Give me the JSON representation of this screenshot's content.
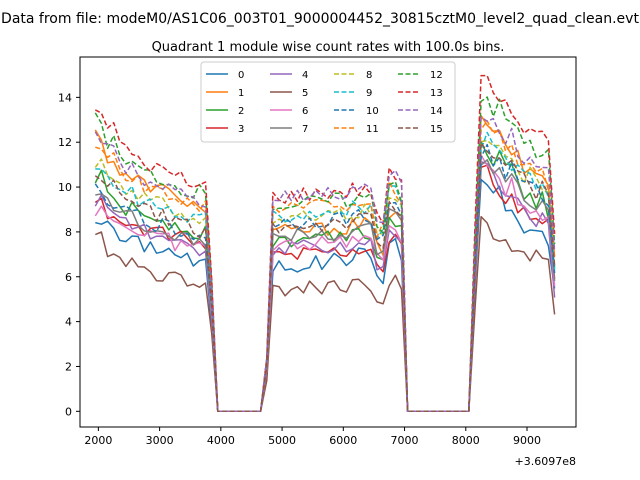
{
  "suptitle": "Data from file: modeM0/AS1C06_003T01_9000004452_30815cztM0_level2_quad_clean.evt",
  "chart_data": {
    "type": "line",
    "title": "Quadrant 1 module wise count rates with 100.0s bins.",
    "xlabel": "",
    "ylabel": "",
    "x_offset_label": "+3.6097e8",
    "xlim": [
      1700,
      9800
    ],
    "ylim": [
      -0.7,
      15.8
    ],
    "xticks": [
      2000,
      3000,
      4000,
      5000,
      6000,
      7000,
      8000,
      9000
    ],
    "yticks": [
      0,
      2,
      4,
      6,
      8,
      10,
      12,
      14
    ],
    "grid": false,
    "legend_position": "upper-center",
    "x": [
      1950,
      2050,
      2150,
      2250,
      2350,
      2450,
      2550,
      2650,
      2750,
      2850,
      2950,
      3050,
      3150,
      3250,
      3350,
      3450,
      3550,
      3650,
      3750,
      3850,
      3950,
      4050,
      4150,
      4250,
      4350,
      4450,
      4550,
      4650,
      4750,
      4850,
      4950,
      5050,
      5150,
      5250,
      5350,
      5450,
      5550,
      5650,
      5750,
      5850,
      5950,
      6050,
      6150,
      6250,
      6350,
      6450,
      6550,
      6650,
      6750,
      6850,
      6950,
      7050,
      7150,
      7250,
      7350,
      7450,
      7550,
      7650,
      7750,
      7850,
      7950,
      8050,
      8150,
      8250,
      8350,
      8450,
      8550,
      8650,
      8750,
      8850,
      8950,
      9050,
      9150,
      9250,
      9350,
      9450
    ],
    "segments": [
      {
        "start": 1950,
        "end": 3780,
        "level": 1.0,
        "settle": 0.02
      },
      {
        "start": 4740,
        "end": 6900,
        "level": 1.0,
        "settle": 0.0
      },
      {
        "start": 8120,
        "end": 9450,
        "level": 1.0,
        "settle": 0.03
      }
    ],
    "series": [
      {
        "name": "0",
        "color": "#1f77b4",
        "dash": "solid",
        "base": [
          8.6,
          8.2,
          7.7,
          7.6,
          7.5,
          7.4,
          7.3,
          7.2,
          7.0,
          6.8,
          6.6,
          6.3
        ],
        "seg2": [
          6.5,
          6.6,
          6.8,
          7.0,
          7.0
        ],
        "seg3": [
          10.2,
          9.8,
          9.0,
          8.6,
          8.0,
          7.7,
          7.6,
          5.3
        ]
      },
      {
        "name": "1",
        "color": "#ff7f0e",
        "dash": "solid",
        "base": [
          12.4,
          11.2,
          10.6,
          10.4,
          10.3,
          10.1,
          9.9,
          9.7,
          9.6,
          9.4,
          9.2,
          8.7
        ],
        "seg2": [
          8.0,
          8.1,
          8.2,
          8.3,
          8.4
        ],
        "seg3": [
          13.0,
          12.2,
          11.7,
          11.2,
          10.8,
          10.6,
          10.4,
          6.7
        ]
      },
      {
        "name": "2",
        "color": "#2ca02c",
        "dash": "solid",
        "base": [
          10.4,
          9.6,
          9.2,
          9.0,
          8.8,
          8.7,
          8.6,
          8.4,
          8.3,
          8.1,
          8.0,
          7.8
        ],
        "seg2": [
          7.6,
          7.7,
          7.9,
          8.0,
          8.1
        ],
        "seg3": [
          11.8,
          11.2,
          10.6,
          10.2,
          9.8,
          9.4,
          9.0,
          6.2
        ]
      },
      {
        "name": "3",
        "color": "#d62728",
        "dash": "solid",
        "base": [
          9.2,
          8.8,
          8.5,
          8.3,
          8.2,
          8.0,
          7.9,
          7.8,
          7.7,
          7.6,
          7.4,
          7.2
        ],
        "seg2": [
          7.0,
          7.1,
          7.2,
          7.3,
          7.4
        ],
        "seg3": [
          10.6,
          10.0,
          9.5,
          9.1,
          8.7,
          8.4,
          8.2,
          5.6
        ]
      },
      {
        "name": "4",
        "color": "#9467bd",
        "dash": "solid",
        "base": [
          9.4,
          9.0,
          8.7,
          8.4,
          8.2,
          8.0,
          7.8,
          7.6,
          7.4,
          7.2,
          7.0,
          6.8
        ],
        "seg2": [
          7.2,
          7.3,
          7.4,
          7.5,
          7.6
        ],
        "seg3": [
          10.8,
          10.2,
          9.6,
          9.2,
          8.8,
          8.4,
          8.1,
          5.4
        ]
      },
      {
        "name": "5",
        "color": "#8c564b",
        "dash": "solid",
        "base": [
          7.8,
          7.2,
          6.9,
          6.7,
          6.5,
          6.3,
          6.1,
          6.0,
          5.9,
          5.8,
          5.8,
          5.8
        ],
        "seg2": [
          5.5,
          5.5,
          5.6,
          5.6,
          5.6
        ],
        "seg3": [
          8.3,
          7.8,
          7.4,
          7.2,
          7.0,
          6.8,
          6.6,
          4.6
        ]
      },
      {
        "name": "6",
        "color": "#e377c2",
        "dash": "solid",
        "base": [
          9.0,
          8.7,
          8.4,
          8.2,
          8.0,
          7.9,
          7.8,
          7.6,
          7.5,
          7.4,
          7.3,
          7.1
        ],
        "seg2": [
          7.4,
          7.5,
          7.6,
          7.7,
          7.8
        ],
        "seg3": [
          11.0,
          10.5,
          10.0,
          9.6,
          9.2,
          8.9,
          8.6,
          5.8
        ]
      },
      {
        "name": "7",
        "color": "#7f7f7f",
        "dash": "solid",
        "base": [
          9.6,
          9.2,
          8.9,
          8.7,
          8.5,
          8.3,
          8.2,
          8.0,
          7.9,
          7.8,
          7.7,
          7.5
        ],
        "seg2": [
          7.8,
          7.9,
          8.0,
          8.1,
          8.2
        ],
        "seg3": [
          11.4,
          10.9,
          10.4,
          10.0,
          9.6,
          9.3,
          9.0,
          6.0
        ]
      },
      {
        "name": "8",
        "color": "#bcbd22",
        "dash": "dashed",
        "base": [
          11.2,
          10.6,
          10.2,
          9.9,
          9.7,
          9.5,
          9.3,
          9.1,
          8.9,
          8.8,
          8.6,
          8.4
        ],
        "seg2": [
          8.6,
          8.7,
          8.8,
          8.9,
          9.0
        ],
        "seg3": [
          12.4,
          11.8,
          11.3,
          10.9,
          10.5,
          10.2,
          9.9,
          6.5
        ]
      },
      {
        "name": "9",
        "color": "#17becf",
        "dash": "dashed",
        "base": [
          10.8,
          10.3,
          9.9,
          9.7,
          9.5,
          9.3,
          9.1,
          9.0,
          8.8,
          8.6,
          8.5,
          8.3
        ],
        "seg2": [
          8.8,
          8.9,
          9.0,
          9.1,
          9.2
        ],
        "seg3": [
          12.0,
          11.5,
          11.0,
          10.6,
          10.3,
          10.0,
          9.8,
          6.4
        ]
      },
      {
        "name": "10",
        "color": "#1f77b4",
        "dash": "dashed",
        "base": [
          9.8,
          9.4,
          9.1,
          8.9,
          8.7,
          8.5,
          8.3,
          8.2,
          8.0,
          7.9,
          7.8,
          7.6
        ],
        "seg2": [
          8.4,
          8.5,
          8.6,
          8.7,
          8.8
        ],
        "seg3": [
          11.6,
          11.1,
          10.7,
          10.3,
          10.0,
          9.7,
          9.5,
          6.2
        ]
      },
      {
        "name": "11",
        "color": "#ff7f0e",
        "dash": "dashed",
        "base": [
          11.8,
          11.2,
          10.8,
          10.5,
          10.3,
          10.1,
          9.9,
          9.7,
          9.5,
          9.3,
          9.1,
          8.9
        ],
        "seg2": [
          9.0,
          9.1,
          9.2,
          9.3,
          9.4
        ],
        "seg3": [
          12.8,
          12.2,
          11.7,
          11.3,
          10.9,
          10.6,
          10.3,
          6.8
        ]
      },
      {
        "name": "12",
        "color": "#2ca02c",
        "dash": "dashed",
        "base": [
          13.0,
          12.0,
          11.4,
          11.0,
          10.8,
          10.6,
          10.4,
          10.2,
          10.0,
          9.9,
          9.8,
          9.6
        ],
        "seg2": [
          9.2,
          9.3,
          9.4,
          9.5,
          9.6
        ],
        "seg3": [
          14.0,
          13.5,
          12.9,
          12.4,
          12.0,
          11.6,
          11.3,
          7.4
        ]
      },
      {
        "name": "13",
        "color": "#d62728",
        "dash": "dashed",
        "base": [
          13.5,
          12.6,
          12.0,
          11.6,
          11.3,
          11.0,
          10.8,
          10.6,
          10.4,
          10.2,
          10.0,
          9.8
        ],
        "seg2": [
          9.6,
          9.7,
          9.8,
          9.9,
          10.0
        ],
        "seg3": [
          15.1,
          14.2,
          13.5,
          13.0,
          12.6,
          12.2,
          11.8,
          7.8
        ]
      },
      {
        "name": "14",
        "color": "#9467bd",
        "dash": "dashed",
        "base": [
          12.2,
          11.6,
          11.1,
          10.8,
          10.5,
          10.3,
          10.1,
          9.9,
          9.7,
          9.5,
          9.3,
          9.1
        ],
        "seg2": [
          9.6,
          9.7,
          9.8,
          9.9,
          10.0
        ],
        "seg3": [
          13.2,
          12.7,
          12.2,
          11.8,
          11.4,
          11.0,
          10.7,
          7.0
        ]
      },
      {
        "name": "15",
        "color": "#8c564b",
        "dash": "dashed",
        "base": [
          10.6,
          10.1,
          9.7,
          9.4,
          9.2,
          9.0,
          8.8,
          8.6,
          8.4,
          8.3,
          8.1,
          7.9
        ],
        "seg2": [
          8.2,
          8.3,
          8.4,
          8.5,
          8.6
        ],
        "seg3": [
          12.0,
          11.5,
          11.0,
          10.6,
          10.2,
          9.9,
          9.6,
          6.3
        ]
      }
    ]
  }
}
